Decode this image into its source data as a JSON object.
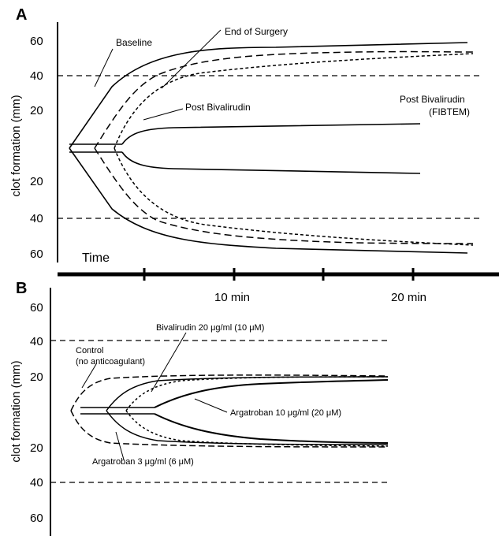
{
  "colors": {
    "ink": "#000000",
    "background": "#ffffff"
  },
  "panel_a": {
    "letter": "A",
    "ylabel": "clot formation (mm)",
    "yticks_top": [
      "60",
      "40",
      "20"
    ],
    "yticks_bottom": [
      "20",
      "40",
      "60"
    ],
    "x_label": "Time",
    "annotations": {
      "baseline": "Baseline",
      "end_of_surgery": "End of Surgery",
      "post_bivalirudin": "Post Bivalirudin",
      "post_bivalirudin_fibtem_1": "Post Bivalirudin",
      "post_bivalirudin_fibtem_2": "(FIBTEM)"
    }
  },
  "timeline": {
    "labels": [
      "10 min",
      "20 min"
    ]
  },
  "panel_b": {
    "letter": "B",
    "ylabel": "clot formation (mm)",
    "yticks_top": [
      "60",
      "40",
      "20"
    ],
    "yticks_bottom": [
      "20",
      "40",
      "60"
    ],
    "annotations": {
      "bivalirudin": "Bivalirudin 20 μg/ml (10 μM)",
      "control_1": "Control",
      "control_2": "(no anticoagulant)",
      "argatroban_10": "Argatroban 10 μg/ml (20 μM)",
      "argatroban_3": "Argatroban 3 μg/ml (6 μM)"
    }
  }
}
